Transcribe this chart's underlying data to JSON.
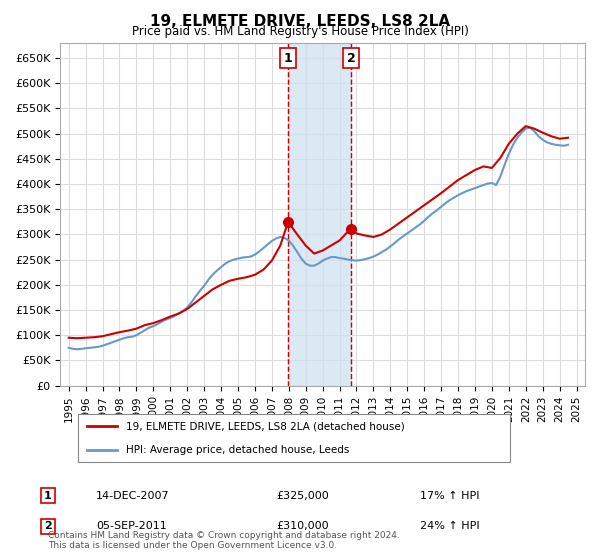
{
  "title": "19, ELMETE DRIVE, LEEDS, LS8 2LA",
  "subtitle": "Price paid vs. HM Land Registry's House Price Index (HPI)",
  "ylabel_ticks": [
    "£0",
    "£50K",
    "£100K",
    "£150K",
    "£200K",
    "£250K",
    "£300K",
    "£350K",
    "£400K",
    "£450K",
    "£500K",
    "£550K",
    "£600K",
    "£650K"
  ],
  "ytick_values": [
    0,
    50000,
    100000,
    150000,
    200000,
    250000,
    300000,
    350000,
    400000,
    450000,
    500000,
    550000,
    600000,
    650000
  ],
  "ylim": [
    0,
    680000
  ],
  "xlim_min": 1994.5,
  "xlim_max": 2025.5,
  "xtick_years": [
    1995,
    1996,
    1997,
    1998,
    1999,
    2000,
    2001,
    2002,
    2003,
    2004,
    2005,
    2006,
    2007,
    2008,
    2009,
    2010,
    2011,
    2012,
    2013,
    2014,
    2015,
    2016,
    2017,
    2018,
    2019,
    2020,
    2021,
    2022,
    2023,
    2024,
    2025
  ],
  "legend_line1": "19, ELMETE DRIVE, LEEDS, LS8 2LA (detached house)",
  "legend_line2": "HPI: Average price, detached house, Leeds",
  "line1_color": "#cc0000",
  "line2_color": "#6699cc",
  "transaction1_date": "14-DEC-2007",
  "transaction1_price": 325000,
  "transaction1_hpi": "17% ↑ HPI",
  "transaction1_x": 2007.96,
  "transaction2_date": "05-SEP-2011",
  "transaction2_price": 310000,
  "transaction2_x": 2011.67,
  "transaction2_hpi": "24% ↑ HPI",
  "shade_color": "#cce0f0",
  "vline_color": "#cc0000",
  "grid_color": "#dddddd",
  "bg_color": "#ffffff",
  "footnote": "Contains HM Land Registry data © Crown copyright and database right 2024.\nThis data is licensed under the Open Government Licence v3.0.",
  "hpi_data_x": [
    1995.0,
    1995.25,
    1995.5,
    1995.75,
    1996.0,
    1996.25,
    1996.5,
    1996.75,
    1997.0,
    1997.25,
    1997.5,
    1997.75,
    1998.0,
    1998.25,
    1998.5,
    1998.75,
    1999.0,
    1999.25,
    1999.5,
    1999.75,
    2000.0,
    2000.25,
    2000.5,
    2000.75,
    2001.0,
    2001.25,
    2001.5,
    2001.75,
    2002.0,
    2002.25,
    2002.5,
    2002.75,
    2003.0,
    2003.25,
    2003.5,
    2003.75,
    2004.0,
    2004.25,
    2004.5,
    2004.75,
    2005.0,
    2005.25,
    2005.5,
    2005.75,
    2006.0,
    2006.25,
    2006.5,
    2006.75,
    2007.0,
    2007.25,
    2007.5,
    2007.75,
    2008.0,
    2008.25,
    2008.5,
    2008.75,
    2009.0,
    2009.25,
    2009.5,
    2009.75,
    2010.0,
    2010.25,
    2010.5,
    2010.75,
    2011.0,
    2011.25,
    2011.5,
    2011.75,
    2012.0,
    2012.25,
    2012.5,
    2012.75,
    2013.0,
    2013.25,
    2013.5,
    2013.75,
    2014.0,
    2014.25,
    2014.5,
    2014.75,
    2015.0,
    2015.25,
    2015.5,
    2015.75,
    2016.0,
    2016.25,
    2016.5,
    2016.75,
    2017.0,
    2017.25,
    2017.5,
    2017.75,
    2018.0,
    2018.25,
    2018.5,
    2018.75,
    2019.0,
    2019.25,
    2019.5,
    2019.75,
    2020.0,
    2020.25,
    2020.5,
    2020.75,
    2021.0,
    2021.25,
    2021.5,
    2021.75,
    2022.0,
    2022.25,
    2022.5,
    2022.75,
    2023.0,
    2023.25,
    2023.5,
    2023.75,
    2024.0,
    2024.25,
    2024.5
  ],
  "hpi_data_y": [
    75000,
    73000,
    72000,
    73000,
    74000,
    75000,
    76000,
    77000,
    79000,
    82000,
    85000,
    88000,
    91000,
    94000,
    96000,
    97000,
    100000,
    105000,
    110000,
    115000,
    118000,
    122000,
    127000,
    131000,
    134000,
    138000,
    143000,
    148000,
    155000,
    165000,
    177000,
    188000,
    198000,
    210000,
    220000,
    228000,
    235000,
    242000,
    247000,
    250000,
    252000,
    254000,
    255000,
    256000,
    260000,
    266000,
    273000,
    280000,
    287000,
    292000,
    295000,
    293000,
    288000,
    278000,
    265000,
    252000,
    242000,
    238000,
    238000,
    242000,
    248000,
    252000,
    255000,
    255000,
    253000,
    252000,
    250000,
    249000,
    248000,
    249000,
    251000,
    253000,
    256000,
    260000,
    265000,
    270000,
    276000,
    283000,
    290000,
    296000,
    302000,
    308000,
    314000,
    320000,
    327000,
    335000,
    342000,
    348000,
    355000,
    362000,
    368000,
    373000,
    378000,
    382000,
    386000,
    389000,
    392000,
    395000,
    398000,
    401000,
    402000,
    398000,
    415000,
    438000,
    460000,
    478000,
    492000,
    502000,
    510000,
    512000,
    505000,
    495000,
    488000,
    483000,
    480000,
    478000,
    477000,
    476000,
    478000
  ],
  "prop_data_x": [
    1995.0,
    1995.5,
    1996.0,
    1996.5,
    1997.0,
    1997.5,
    1998.0,
    1998.5,
    1999.0,
    1999.5,
    2000.0,
    2000.5,
    2001.0,
    2001.5,
    2002.0,
    2002.5,
    2003.0,
    2003.5,
    2004.0,
    2004.5,
    2005.0,
    2005.5,
    2006.0,
    2006.5,
    2007.0,
    2007.5,
    2007.96,
    2008.5,
    2009.0,
    2009.5,
    2010.0,
    2010.5,
    2011.0,
    2011.5,
    2011.67,
    2012.0,
    2012.5,
    2013.0,
    2013.5,
    2014.0,
    2014.5,
    2015.0,
    2015.5,
    2016.0,
    2016.5,
    2017.0,
    2017.5,
    2018.0,
    2018.5,
    2019.0,
    2019.5,
    2020.0,
    2020.5,
    2021.0,
    2021.5,
    2022.0,
    2022.5,
    2023.0,
    2023.5,
    2024.0,
    2024.5
  ],
  "prop_data_y": [
    95000,
    94000,
    95000,
    96000,
    98000,
    102000,
    106000,
    109000,
    113000,
    120000,
    124000,
    130000,
    137000,
    143000,
    152000,
    165000,
    178000,
    191000,
    200000,
    208000,
    212000,
    215000,
    220000,
    230000,
    248000,
    278000,
    325000,
    300000,
    278000,
    262000,
    268000,
    278000,
    288000,
    306000,
    310000,
    302000,
    298000,
    295000,
    300000,
    310000,
    322000,
    334000,
    346000,
    358000,
    370000,
    382000,
    395000,
    408000,
    418000,
    428000,
    435000,
    432000,
    452000,
    480000,
    500000,
    515000,
    510000,
    502000,
    495000,
    490000,
    492000
  ]
}
